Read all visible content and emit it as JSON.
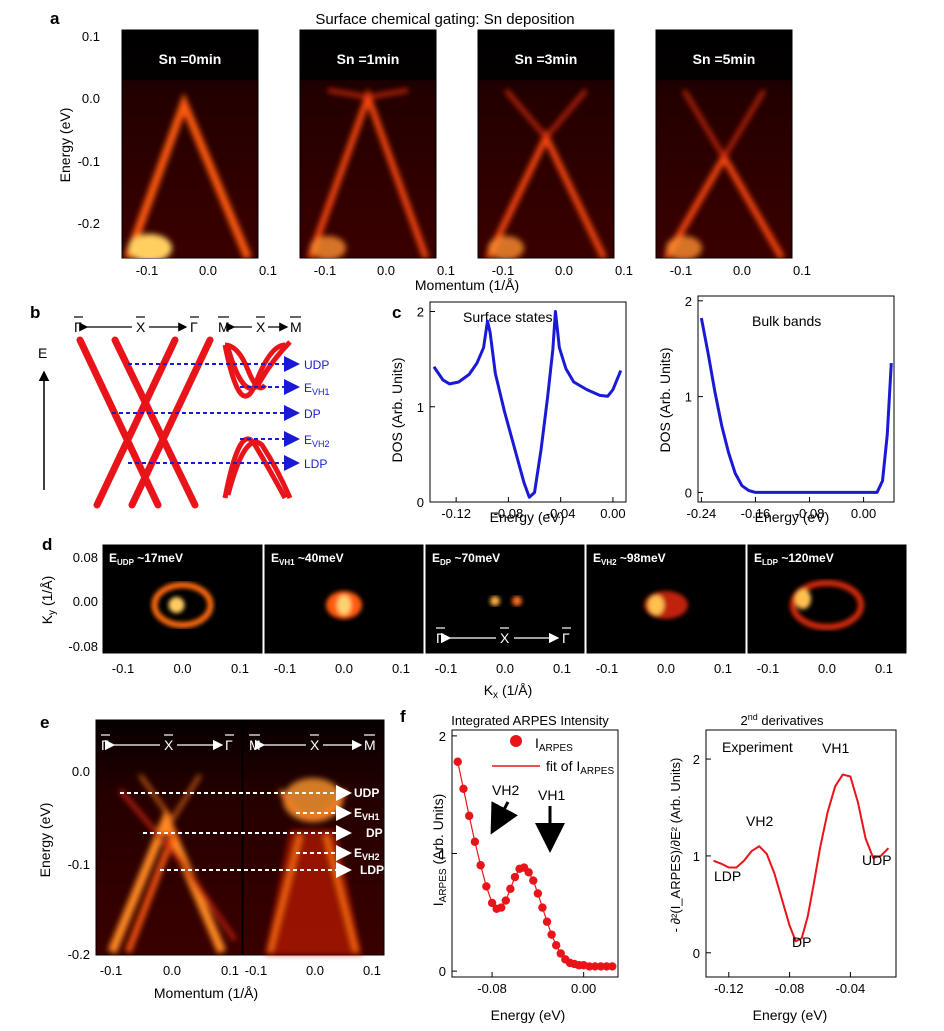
{
  "figure": {
    "title": "Surface chemical gating: Sn deposition",
    "panel_letters": [
      "a",
      "b",
      "c",
      "d",
      "e",
      "f"
    ]
  },
  "panel_a": {
    "ylabel": "Energy (eV)",
    "xlabel": "Momentum (1/Å)",
    "yticks": [
      "0.1",
      "0.0",
      "-0.1",
      "-0.2"
    ],
    "xticks": [
      "-0.1",
      "0.0",
      "0.1"
    ],
    "images": [
      {
        "label": "Sn =0min",
        "dirac_energy_eV": null
      },
      {
        "label": "Sn =1min",
        "dirac_energy_eV": -0.0
      },
      {
        "label": "Sn =3min",
        "dirac_energy_eV": -0.06
      },
      {
        "label": "Sn =5min",
        "dirac_energy_eV": -0.09
      }
    ]
  },
  "panel_b": {
    "gamma": "Γ",
    "x": "X",
    "m": "M",
    "energy_axis": "E",
    "levels": [
      {
        "label": "UDP",
        "sub": ""
      },
      {
        "label": "E",
        "sub": "VH1"
      },
      {
        "label": "DP",
        "sub": ""
      },
      {
        "label": "E",
        "sub": "VH2"
      },
      {
        "label": "LDP",
        "sub": ""
      }
    ]
  },
  "panel_c": {
    "ylabel": "DOS (Arb. Units)",
    "xlabel": "Energy (eV)",
    "color": "#1a1ad6"
  },
  "panel_d": {
    "ylabel": "K",
    "ylabel_sub": "y",
    "ylabel_unit": "(1/Å)",
    "xlabel": "K",
    "xlabel_sub": "x",
    "xlabel_unit": "(1/Å)",
    "yticks": [
      "0.08",
      "0.00",
      "-0.08"
    ],
    "xticks": [
      "-0.1",
      "0.0",
      "0.1"
    ],
    "maps": [
      {
        "label": "E",
        "sub": "UDP",
        "value": "~17meV"
      },
      {
        "label": "E",
        "sub": "VH1",
        "value": "~40meV"
      },
      {
        "label": "E",
        "sub": "DP",
        "value": "~70meV"
      },
      {
        "label": "E",
        "sub": "VH2",
        "value": "~98meV"
      },
      {
        "label": "E",
        "sub": "LDP",
        "value": "~120meV"
      }
    ]
  },
  "panel_e": {
    "ylabel": "Energy (eV)",
    "xlabel": "Momentum (1/Å)",
    "yticks": [
      "0.0",
      "-0.1",
      "-0.2"
    ],
    "xticks_left": [
      "-0.1",
      "0.0",
      "0.1"
    ],
    "xticks_right": [
      "-0.1",
      "0.0",
      "0.1"
    ],
    "levels": [
      {
        "label": "UDP",
        "sub": ""
      },
      {
        "label": "E",
        "sub": "VH1"
      },
      {
        "label": "DP",
        "sub": ""
      },
      {
        "label": "E",
        "sub": "VH2"
      },
      {
        "label": "LDP",
        "sub": ""
      }
    ]
  },
  "panel_f": {
    "left_title": "Integrated ARPES Intensity",
    "left_ylabel": "I",
    "left_ylabel_sub": "ARPES",
    "left_ylabel_unit": "(Arb. Units)",
    "left_xlabel": "Energy (eV)",
    "legend_points": "I",
    "legend_points_sub": "ARPES",
    "legend_fit": "fit of I",
    "legend_fit_sub": "ARPES",
    "arrow_vh2": "VH2",
    "arrow_vh1": "VH1",
    "right_title": "2",
    "right_title_sup": "nd",
    "right_title_rest": " derivatives",
    "right_ylabel": "- ∂²(I_ARPES)/∂E² (Arb. Units)",
    "right_xlabel": "Energy (eV)",
    "experiment_label": "Experiment",
    "peak_labels": [
      "VH1",
      "VH2",
      "LDP",
      "DP",
      "UDP"
    ]
  },
  "chart_data": [
    {
      "type": "line",
      "title": "Surface states",
      "xlabel": "Energy (eV)",
      "ylabel": "DOS (Arb. Units)",
      "xlim": [
        -0.14,
        0.01
      ],
      "ylim": [
        0,
        2.1
      ],
      "xticks": [
        -0.12,
        -0.08,
        -0.04,
        0.0
      ],
      "xtick_labels": [
        "-0.12",
        "-0.08",
        "-0.04",
        "0.00"
      ],
      "yticks": [
        0,
        1,
        2
      ],
      "ytick_labels": [
        "0",
        "1",
        "2"
      ],
      "x": [
        -0.137,
        -0.13,
        -0.125,
        -0.118,
        -0.11,
        -0.104,
        -0.099,
        -0.096,
        -0.094,
        -0.09,
        -0.083,
        -0.075,
        -0.068,
        -0.064,
        -0.06,
        -0.055,
        -0.05,
        -0.046,
        -0.044,
        -0.041,
        -0.036,
        -0.03,
        -0.02,
        -0.01,
        -0.004,
        0.0,
        0.006
      ],
      "values": [
        1.42,
        1.28,
        1.24,
        1.26,
        1.34,
        1.46,
        1.62,
        1.9,
        1.78,
        1.35,
        0.95,
        0.55,
        0.2,
        0.05,
        0.1,
        0.55,
        1.1,
        1.6,
        2.0,
        1.62,
        1.4,
        1.26,
        1.18,
        1.12,
        1.11,
        1.18,
        1.38
      ]
    },
    {
      "type": "line",
      "title": "Bulk bands",
      "xlabel": "Energy (eV)",
      "ylabel": "DOS (Arb. Units)",
      "xlim": [
        -0.245,
        0.045
      ],
      "ylim": [
        -0.1,
        2.05
      ],
      "xticks": [
        -0.24,
        -0.16,
        -0.08,
        0.0
      ],
      "xtick_labels": [
        "-0.24",
        "-0.16",
        "-0.08",
        "0.00"
      ],
      "yticks": [
        0,
        1,
        2
      ],
      "ytick_labels": [
        "0",
        "1",
        "2"
      ],
      "x": [
        -0.24,
        -0.23,
        -0.22,
        -0.21,
        -0.2,
        -0.19,
        -0.18,
        -0.17,
        -0.16,
        -0.15,
        -0.12,
        -0.08,
        -0.04,
        0.0,
        0.02,
        0.028,
        0.035,
        0.041
      ],
      "values": [
        1.82,
        1.45,
        1.05,
        0.7,
        0.42,
        0.2,
        0.07,
        0.02,
        0.0,
        0.0,
        0.0,
        0.0,
        0.0,
        0.0,
        0.0,
        0.12,
        0.6,
        1.35
      ]
    },
    {
      "type": "scatter",
      "title": "Integrated ARPES Intensity",
      "xlabel": "Energy (eV)",
      "ylabel": "I_ARPES (Arb. Units)",
      "xlim": [
        -0.115,
        0.03
      ],
      "ylim": [
        -0.05,
        2.05
      ],
      "xticks": [
        -0.08,
        0.0
      ],
      "xtick_labels": [
        "-0.08",
        "0.00"
      ],
      "yticks": [
        0,
        1,
        2
      ],
      "ytick_labels": [
        "0",
        "1",
        "2"
      ],
      "series": [
        {
          "name": "I_ARPES",
          "x": [
            -0.11,
            -0.105,
            -0.1,
            -0.095,
            -0.09,
            -0.085,
            -0.08,
            -0.076,
            -0.072,
            -0.068,
            -0.064,
            -0.06,
            -0.056,
            -0.052,
            -0.048,
            -0.044,
            -0.04,
            -0.036,
            -0.032,
            -0.028,
            -0.024,
            -0.02,
            -0.016,
            -0.012,
            -0.008,
            -0.004,
            0.0,
            0.005,
            0.01,
            0.015,
            0.02,
            0.025
          ],
          "values": [
            1.78,
            1.55,
            1.32,
            1.1,
            0.9,
            0.72,
            0.58,
            0.53,
            0.54,
            0.6,
            0.7,
            0.8,
            0.87,
            0.88,
            0.84,
            0.77,
            0.66,
            0.54,
            0.42,
            0.31,
            0.22,
            0.15,
            0.1,
            0.07,
            0.06,
            0.05,
            0.05,
            0.04,
            0.04,
            0.04,
            0.04,
            0.04
          ]
        }
      ]
    },
    {
      "type": "line",
      "title": "2nd derivatives",
      "xlabel": "Energy (eV)",
      "ylabel": "- d2(I_ARPES)/dE2 (Arb. Units)",
      "xlim": [
        -0.135,
        -0.01
      ],
      "ylim": [
        -0.25,
        2.3
      ],
      "xticks": [
        -0.12,
        -0.08,
        -0.04
      ],
      "xtick_labels": [
        "-0.12",
        "-0.08",
        "-0.04"
      ],
      "yticks": [
        0,
        1,
        2
      ],
      "ytick_labels": [
        "0",
        "1",
        "2"
      ],
      "x": [
        -0.13,
        -0.125,
        -0.12,
        -0.115,
        -0.11,
        -0.105,
        -0.1,
        -0.095,
        -0.09,
        -0.085,
        -0.08,
        -0.076,
        -0.072,
        -0.068,
        -0.064,
        -0.06,
        -0.055,
        -0.05,
        -0.045,
        -0.04,
        -0.035,
        -0.03,
        -0.025,
        -0.02,
        -0.015
      ],
      "values": [
        0.95,
        0.92,
        0.88,
        0.88,
        0.95,
        1.05,
        1.1,
        1.02,
        0.82,
        0.55,
        0.28,
        0.12,
        0.15,
        0.38,
        0.72,
        1.08,
        1.45,
        1.72,
        1.84,
        1.82,
        1.55,
        1.18,
        0.98,
        1.0,
        1.08
      ]
    }
  ]
}
